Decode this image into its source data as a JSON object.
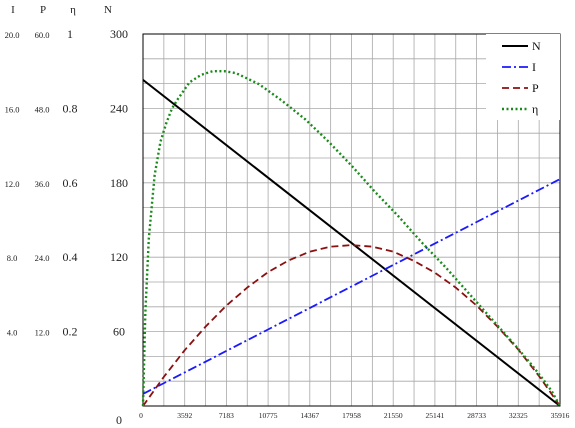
{
  "chart_data": {
    "type": "line",
    "title": "",
    "axis_headers": {
      "I": "I",
      "P": "P",
      "eta": "η",
      "N": "N"
    },
    "y_axes": {
      "N": {
        "ticks": [
          "0",
          "60",
          "120",
          "180",
          "240",
          "300"
        ],
        "range": [
          0,
          300
        ]
      },
      "eta": {
        "ticks": [
          "0.2",
          "0.4",
          "0.6",
          "0.8",
          "1"
        ],
        "range": [
          0,
          1
        ]
      },
      "P": {
        "ticks": [
          "12.0",
          "24.0",
          "36.0",
          "48.0",
          "60.0"
        ],
        "range": [
          0,
          60
        ]
      },
      "I": {
        "ticks": [
          "4.0",
          "8.0",
          "12.0",
          "16.0",
          "20.0"
        ],
        "range": [
          0,
          20
        ]
      }
    },
    "x_axis": {
      "ticks": [
        "0",
        "3592",
        "7183",
        "10775",
        "14367",
        "17958",
        "21550",
        "25141",
        "28733",
        "32325",
        "35916"
      ],
      "range": [
        0,
        35916
      ]
    },
    "grid": true,
    "legend": {
      "position": "top-right"
    },
    "series": [
      {
        "name": "N",
        "axis": "N",
        "color": "#000000",
        "dash": "solid",
        "x": [
          0,
          35916
        ],
        "y": [
          263,
          0
        ]
      },
      {
        "name": "I",
        "axis": "I",
        "color": "#1a1aff",
        "dash": "dashdot",
        "x": [
          0,
          35916
        ],
        "y": [
          0.65,
          12.2
        ]
      },
      {
        "name": "P",
        "axis": "P",
        "color": "#8b1010",
        "dash": "dash",
        "x": [
          0,
          1796,
          3592,
          5388,
          7183,
          8979,
          10775,
          12571,
          14367,
          16163,
          17958,
          19754,
          21550,
          23346,
          25141,
          26937,
          28733,
          30529,
          32325,
          34121,
          35916
        ],
        "y": [
          0,
          4.7,
          9.0,
          12.8,
          16.2,
          19.1,
          21.6,
          23.5,
          24.9,
          25.7,
          25.95,
          25.7,
          24.9,
          23.4,
          21.5,
          19.1,
          16.2,
          12.8,
          9.1,
          4.8,
          0
        ]
      },
      {
        "name": "η",
        "axis": "eta",
        "color": "#1a8a1a",
        "dash": "dot",
        "x": [
          0,
          200,
          500,
          1000,
          1500,
          2000,
          2500,
          3000,
          4000,
          5000,
          6000,
          7000,
          8000,
          10000,
          12000,
          14000,
          16000,
          18000,
          20000,
          22000,
          24000,
          26000,
          28000,
          30000,
          32000,
          33500,
          34500,
          35200,
          35916
        ],
        "y": [
          0,
          0.25,
          0.45,
          0.62,
          0.71,
          0.76,
          0.8,
          0.825,
          0.87,
          0.89,
          0.9,
          0.9,
          0.895,
          0.865,
          0.82,
          0.77,
          0.71,
          0.645,
          0.575,
          0.51,
          0.44,
          0.375,
          0.305,
          0.235,
          0.165,
          0.11,
          0.07,
          0.04,
          0
        ]
      }
    ]
  }
}
